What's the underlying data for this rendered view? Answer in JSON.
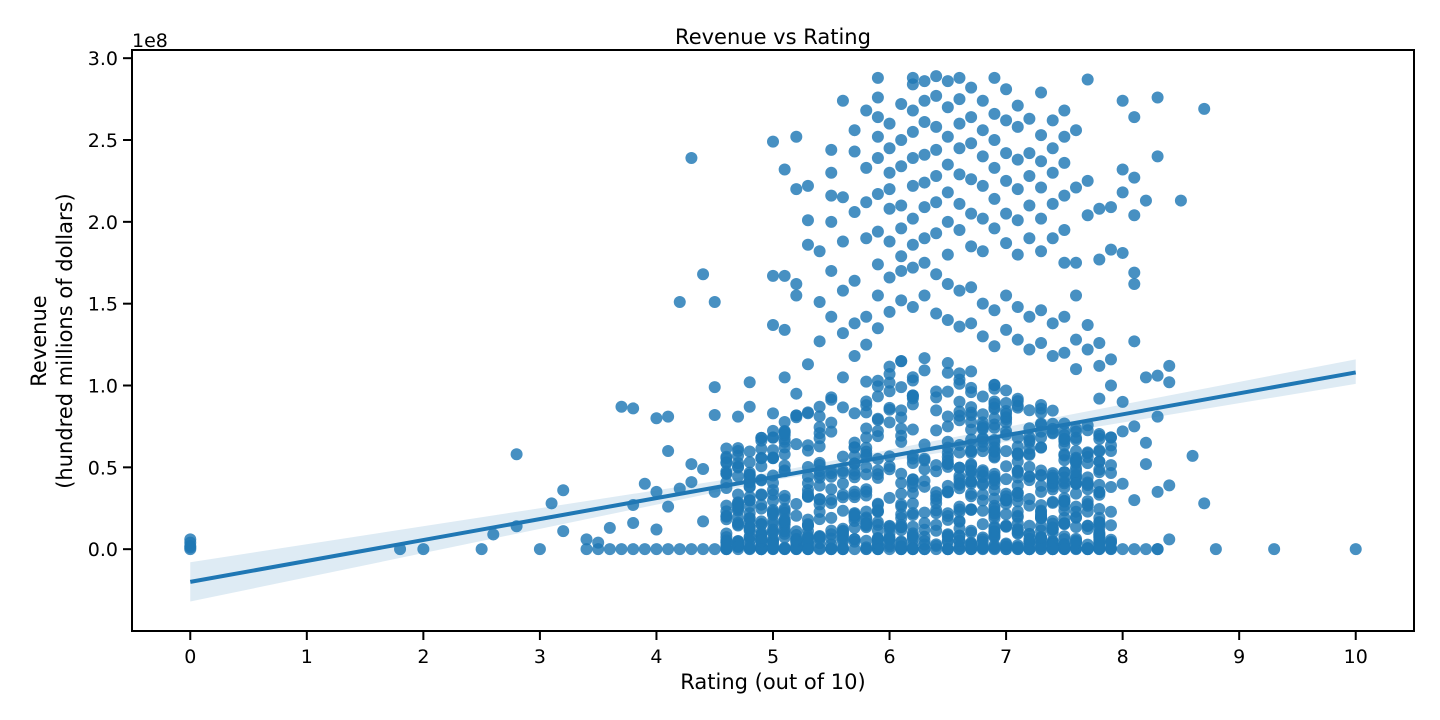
{
  "chart_data": {
    "type": "scatter",
    "title": "Revenue vs Rating",
    "xlabel": "Rating (out of 10)",
    "ylabel_lines": [
      "Revenue",
      "(hundred millions of dollars)"
    ],
    "y_offset_label": "1e8",
    "xlim": [
      -0.5,
      10.5
    ],
    "ylim": [
      -0.5,
      3.05
    ],
    "x_ticks": [
      0,
      1,
      2,
      3,
      4,
      5,
      6,
      7,
      8,
      9,
      10
    ],
    "x_tick_labels": [
      "0",
      "1",
      "2",
      "3",
      "4",
      "5",
      "6",
      "7",
      "8",
      "9",
      "10"
    ],
    "y_ticks": [
      0.0,
      0.5,
      1.0,
      1.5,
      2.0,
      2.5,
      3.0
    ],
    "y_tick_labels": [
      "0.0",
      "0.5",
      "1.0",
      "1.5",
      "2.0",
      "2.5",
      "3.0"
    ],
    "grid": false,
    "color": "#1f77b4",
    "regression": {
      "x_range": [
        0,
        10
      ],
      "intercept": -0.2,
      "slope": 0.128,
      "ci_at_0": [
        -0.32,
        -0.08
      ],
      "ci_at_5": [
        0.42,
        0.47
      ],
      "ci_at_10": [
        1.01,
        1.16
      ]
    },
    "points": [
      [
        0,
        0.06
      ],
      [
        0,
        0.04
      ],
      [
        0,
        0.02
      ],
      [
        0,
        0.01
      ],
      [
        0,
        0.0
      ],
      [
        1.8,
        0.0
      ],
      [
        2.0,
        0.0
      ],
      [
        2.5,
        0.0
      ],
      [
        2.6,
        0.09
      ],
      [
        2.8,
        0.14
      ],
      [
        2.8,
        0.58
      ],
      [
        3.0,
        0.0
      ],
      [
        3.1,
        0.28
      ],
      [
        3.2,
        0.36
      ],
      [
        3.2,
        0.11
      ],
      [
        3.4,
        0.06
      ],
      [
        3.5,
        0.04
      ],
      [
        3.6,
        0.13
      ],
      [
        3.7,
        0.87
      ],
      [
        3.8,
        0.86
      ],
      [
        3.8,
        0.27
      ],
      [
        3.8,
        0.16
      ],
      [
        3.9,
        0.4
      ],
      [
        4.0,
        0.8
      ],
      [
        4.0,
        0.35
      ],
      [
        4.0,
        0.12
      ],
      [
        4.1,
        0.81
      ],
      [
        4.1,
        0.6
      ],
      [
        4.1,
        0.26
      ],
      [
        4.2,
        1.51
      ],
      [
        4.2,
        0.37
      ],
      [
        4.3,
        2.39
      ],
      [
        4.3,
        0.52
      ],
      [
        4.3,
        0.41
      ],
      [
        4.4,
        1.68
      ],
      [
        4.4,
        0.49
      ],
      [
        4.4,
        0.17
      ],
      [
        4.5,
        1.51
      ],
      [
        4.5,
        0.99
      ],
      [
        4.5,
        0.82
      ],
      [
        4.5,
        0.35
      ],
      [
        4.6,
        0.53
      ],
      [
        4.6,
        0.46
      ],
      [
        4.7,
        0.81
      ],
      [
        4.7,
        0.6
      ],
      [
        4.8,
        1.02
      ],
      [
        4.8,
        0.87
      ],
      [
        4.9,
        0.68
      ],
      [
        4.9,
        0.42
      ],
      [
        5.0,
        2.49
      ],
      [
        5.0,
        1.67
      ],
      [
        5.0,
        1.37
      ],
      [
        5.0,
        0.83
      ],
      [
        5.0,
        0.56
      ],
      [
        5.1,
        2.32
      ],
      [
        5.1,
        1.67
      ],
      [
        5.1,
        1.34
      ],
      [
        5.1,
        1.05
      ],
      [
        5.1,
        0.71
      ],
      [
        5.2,
        2.52
      ],
      [
        5.2,
        2.2
      ],
      [
        5.2,
        1.62
      ],
      [
        5.2,
        1.55
      ],
      [
        5.2,
        0.95
      ],
      [
        5.3,
        2.22
      ],
      [
        5.3,
        2.01
      ],
      [
        5.3,
        1.86
      ],
      [
        5.3,
        1.13
      ],
      [
        5.4,
        1.82
      ],
      [
        5.4,
        1.51
      ],
      [
        5.4,
        1.27
      ],
      [
        5.5,
        2.44
      ],
      [
        5.5,
        2.3
      ],
      [
        5.5,
        2.16
      ],
      [
        5.5,
        2.0
      ],
      [
        5.5,
        1.7
      ],
      [
        5.5,
        1.42
      ],
      [
        5.6,
        2.74
      ],
      [
        5.6,
        2.15
      ],
      [
        5.6,
        1.88
      ],
      [
        5.6,
        1.58
      ],
      [
        5.7,
        2.56
      ],
      [
        5.7,
        2.43
      ],
      [
        5.7,
        2.06
      ],
      [
        5.7,
        1.64
      ],
      [
        5.8,
        2.68
      ],
      [
        5.8,
        2.33
      ],
      [
        5.8,
        2.12
      ],
      [
        5.8,
        1.9
      ],
      [
        5.9,
        2.88
      ],
      [
        5.9,
        2.76
      ],
      [
        5.9,
        2.64
      ],
      [
        5.9,
        2.52
      ],
      [
        5.9,
        2.39
      ],
      [
        5.9,
        2.17
      ],
      [
        5.9,
        1.94
      ],
      [
        5.9,
        1.74
      ],
      [
        6.0,
        2.6
      ],
      [
        6.0,
        2.45
      ],
      [
        6.0,
        2.3
      ],
      [
        6.0,
        2.2
      ],
      [
        6.0,
        2.08
      ],
      [
        6.0,
        1.88
      ],
      [
        6.1,
        2.72
      ],
      [
        6.1,
        2.5
      ],
      [
        6.1,
        2.34
      ],
      [
        6.1,
        2.1
      ],
      [
        6.1,
        1.96
      ],
      [
        6.1,
        1.79
      ],
      [
        6.2,
        2.88
      ],
      [
        6.2,
        2.84
      ],
      [
        6.2,
        2.68
      ],
      [
        6.2,
        2.55
      ],
      [
        6.2,
        2.39
      ],
      [
        6.2,
        2.22
      ],
      [
        6.2,
        2.02
      ],
      [
        6.2,
        1.86
      ],
      [
        6.3,
        2.86
      ],
      [
        6.3,
        2.74
      ],
      [
        6.3,
        2.61
      ],
      [
        6.3,
        2.41
      ],
      [
        6.3,
        2.24
      ],
      [
        6.3,
        2.09
      ],
      [
        6.3,
        1.9
      ],
      [
        6.4,
        2.89
      ],
      [
        6.4,
        2.77
      ],
      [
        6.4,
        2.58
      ],
      [
        6.4,
        2.44
      ],
      [
        6.4,
        2.28
      ],
      [
        6.4,
        2.12
      ],
      [
        6.4,
        1.93
      ],
      [
        6.5,
        2.86
      ],
      [
        6.5,
        2.7
      ],
      [
        6.5,
        2.52
      ],
      [
        6.5,
        2.35
      ],
      [
        6.5,
        2.18
      ],
      [
        6.5,
        2.0
      ],
      [
        6.5,
        1.8
      ],
      [
        6.6,
        2.88
      ],
      [
        6.6,
        2.75
      ],
      [
        6.6,
        2.6
      ],
      [
        6.6,
        2.45
      ],
      [
        6.6,
        2.29
      ],
      [
        6.6,
        2.11
      ],
      [
        6.6,
        1.95
      ],
      [
        6.7,
        2.82
      ],
      [
        6.7,
        2.64
      ],
      [
        6.7,
        2.48
      ],
      [
        6.7,
        2.26
      ],
      [
        6.7,
        2.05
      ],
      [
        6.7,
        1.85
      ],
      [
        6.8,
        2.74
      ],
      [
        6.8,
        2.56
      ],
      [
        6.8,
        2.4
      ],
      [
        6.8,
        2.22
      ],
      [
        6.8,
        2.02
      ],
      [
        6.8,
        1.82
      ],
      [
        6.9,
        2.88
      ],
      [
        6.9,
        2.66
      ],
      [
        6.9,
        2.5
      ],
      [
        6.9,
        2.33
      ],
      [
        6.9,
        2.14
      ],
      [
        6.9,
        1.96
      ],
      [
        7.0,
        2.81
      ],
      [
        7.0,
        2.62
      ],
      [
        7.0,
        2.42
      ],
      [
        7.0,
        2.25
      ],
      [
        7.0,
        2.05
      ],
      [
        7.0,
        1.87
      ],
      [
        7.1,
        2.71
      ],
      [
        7.1,
        2.58
      ],
      [
        7.1,
        2.38
      ],
      [
        7.1,
        2.2
      ],
      [
        7.1,
        2.01
      ],
      [
        7.1,
        1.8
      ],
      [
        7.2,
        2.63
      ],
      [
        7.2,
        2.42
      ],
      [
        7.2,
        2.28
      ],
      [
        7.2,
        2.1
      ],
      [
        7.2,
        1.9
      ],
      [
        7.3,
        2.79
      ],
      [
        7.3,
        2.53
      ],
      [
        7.3,
        2.37
      ],
      [
        7.3,
        2.21
      ],
      [
        7.3,
        2.02
      ],
      [
        7.3,
        1.82
      ],
      [
        7.4,
        2.62
      ],
      [
        7.4,
        2.45
      ],
      [
        7.4,
        2.3
      ],
      [
        7.4,
        2.11
      ],
      [
        7.4,
        1.9
      ],
      [
        7.5,
        2.68
      ],
      [
        7.5,
        2.52
      ],
      [
        7.5,
        2.36
      ],
      [
        7.5,
        2.16
      ],
      [
        7.5,
        1.95
      ],
      [
        7.5,
        1.75
      ],
      [
        7.6,
        2.56
      ],
      [
        7.6,
        2.21
      ],
      [
        7.6,
        1.75
      ],
      [
        7.6,
        1.55
      ],
      [
        7.7,
        2.87
      ],
      [
        7.7,
        2.25
      ],
      [
        7.7,
        2.04
      ],
      [
        7.7,
        1.37
      ],
      [
        7.8,
        2.08
      ],
      [
        7.8,
        1.77
      ],
      [
        7.8,
        1.26
      ],
      [
        7.9,
        2.09
      ],
      [
        7.9,
        1.83
      ],
      [
        7.9,
        1.16
      ],
      [
        8.0,
        2.74
      ],
      [
        8.0,
        2.32
      ],
      [
        8.0,
        2.18
      ],
      [
        8.0,
        1.81
      ],
      [
        8.1,
        2.64
      ],
      [
        8.1,
        2.27
      ],
      [
        8.1,
        2.04
      ],
      [
        8.1,
        1.69
      ],
      [
        8.1,
        1.62
      ],
      [
        8.1,
        1.27
      ],
      [
        8.2,
        2.13
      ],
      [
        8.2,
        1.05
      ],
      [
        8.2,
        0.65
      ],
      [
        8.3,
        2.76
      ],
      [
        8.3,
        2.4
      ],
      [
        8.3,
        1.06
      ],
      [
        8.3,
        0.81
      ],
      [
        8.4,
        1.12
      ],
      [
        8.4,
        1.02
      ],
      [
        8.4,
        0.39
      ],
      [
        8.5,
        2.13
      ],
      [
        8.6,
        0.57
      ],
      [
        8.7,
        2.69
      ],
      [
        8.7,
        0.28
      ],
      [
        8.8,
        0.0
      ],
      [
        9.3,
        0.0
      ],
      [
        10.0,
        0.0
      ],
      [
        5.6,
        1.32
      ],
      [
        5.6,
        1.05
      ],
      [
        5.7,
        1.38
      ],
      [
        5.7,
        1.18
      ],
      [
        5.8,
        1.42
      ],
      [
        5.8,
        1.25
      ],
      [
        5.9,
        1.55
      ],
      [
        5.9,
        1.35
      ],
      [
        6.0,
        1.66
      ],
      [
        6.0,
        1.45
      ],
      [
        6.1,
        1.7
      ],
      [
        6.1,
        1.52
      ],
      [
        6.2,
        1.72
      ],
      [
        6.2,
        1.48
      ],
      [
        6.3,
        1.75
      ],
      [
        6.3,
        1.55
      ],
      [
        6.4,
        1.68
      ],
      [
        6.4,
        1.44
      ],
      [
        6.5,
        1.62
      ],
      [
        6.5,
        1.4
      ],
      [
        6.6,
        1.58
      ],
      [
        6.6,
        1.36
      ],
      [
        6.7,
        1.6
      ],
      [
        6.7,
        1.38
      ],
      [
        6.8,
        1.5
      ],
      [
        6.8,
        1.3
      ],
      [
        6.9,
        1.46
      ],
      [
        6.9,
        1.24
      ],
      [
        7.0,
        1.55
      ],
      [
        7.0,
        1.34
      ],
      [
        7.1,
        1.48
      ],
      [
        7.1,
        1.28
      ],
      [
        7.2,
        1.42
      ],
      [
        7.2,
        1.22
      ],
      [
        7.3,
        1.46
      ],
      [
        7.3,
        1.26
      ],
      [
        7.4,
        1.38
      ],
      [
        7.4,
        1.18
      ],
      [
        7.5,
        1.42
      ],
      [
        7.5,
        1.2
      ],
      [
        7.6,
        1.28
      ],
      [
        7.6,
        1.1
      ],
      [
        7.7,
        1.22
      ],
      [
        7.8,
        1.12
      ],
      [
        7.8,
        0.92
      ],
      [
        7.9,
        1.0
      ],
      [
        8.0,
        0.9
      ],
      [
        8.0,
        0.72
      ],
      [
        8.1,
        0.75
      ],
      [
        8.2,
        0.52
      ],
      [
        8.3,
        0.35
      ],
      [
        8.4,
        0.06
      ],
      [
        8.1,
        0.3
      ],
      [
        8.0,
        0.4
      ],
      [
        7.9,
        0.6
      ],
      [
        8.3,
        0.0
      ]
    ]
  }
}
